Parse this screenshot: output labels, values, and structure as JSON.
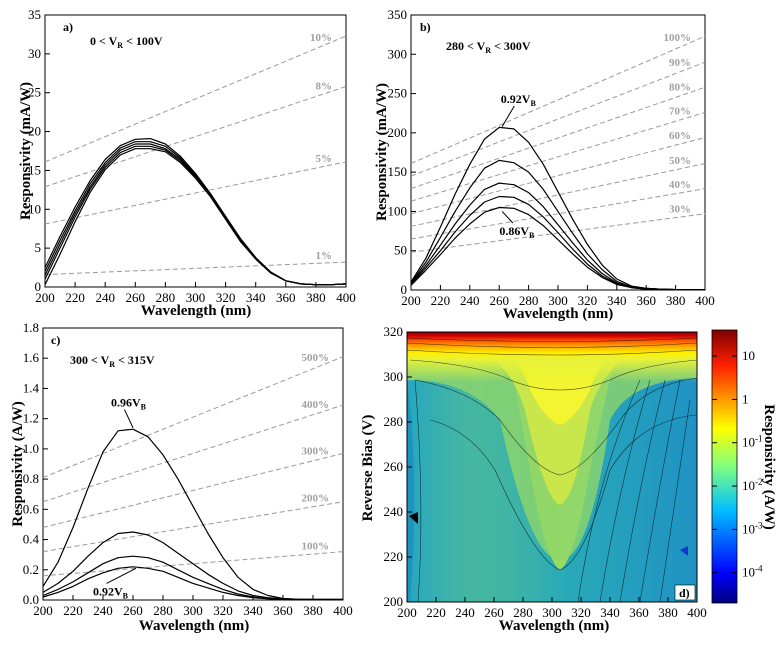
{
  "chart_data": [
    {
      "type": "line",
      "panel_label": "a)",
      "condition": {
        "pre": "0 < V",
        "sub": "R",
        "post": " < 100V"
      },
      "xlabel": "Wavelength (nm)",
      "ylabel": "Responsivity (mA/W)",
      "xlim": [
        200,
        400
      ],
      "ylim": [
        0,
        35
      ],
      "xticks": [
        200,
        220,
        240,
        260,
        280,
        300,
        320,
        340,
        360,
        380,
        400
      ],
      "yticks": [
        0,
        5,
        10,
        15,
        20,
        25,
        30,
        35
      ],
      "x": [
        200,
        210,
        220,
        230,
        240,
        250,
        260,
        270,
        280,
        290,
        300,
        310,
        320,
        330,
        340,
        350,
        360,
        370,
        380,
        390,
        400
      ],
      "series": [
        {
          "values": [
            2.5,
            6.5,
            10.3,
            13.7,
            16.4,
            18.2,
            19.0,
            19.1,
            18.4,
            16.8,
            14.6,
            12.0,
            9.1,
            6.2,
            3.8,
            1.9,
            0.8,
            0.4,
            0.3,
            0.3,
            0.4
          ]
        },
        {
          "values": [
            2.0,
            6.0,
            9.8,
            13.3,
            16.0,
            17.9,
            18.7,
            18.7,
            18.1,
            16.6,
            14.4,
            11.9,
            9.0,
            6.1,
            3.7,
            1.9,
            0.8,
            0.4,
            0.3,
            0.3,
            0.4
          ]
        },
        {
          "values": [
            1.5,
            5.5,
            9.4,
            12.9,
            15.7,
            17.6,
            18.4,
            18.4,
            17.8,
            16.4,
            14.3,
            11.8,
            8.9,
            6.0,
            3.7,
            1.9,
            0.8,
            0.4,
            0.3,
            0.3,
            0.4
          ]
        },
        {
          "values": [
            1.0,
            5.0,
            9.0,
            12.6,
            15.4,
            17.3,
            18.1,
            18.1,
            17.6,
            16.2,
            14.2,
            11.7,
            8.8,
            5.9,
            3.6,
            1.8,
            0.8,
            0.4,
            0.3,
            0.3,
            0.4
          ]
        },
        {
          "values": [
            0.3,
            4.2,
            8.4,
            12.2,
            15.1,
            17.0,
            17.8,
            17.8,
            17.4,
            16.0,
            14.0,
            11.6,
            8.7,
            5.8,
            3.6,
            1.8,
            0.8,
            0.4,
            0.3,
            0.3,
            0.4
          ]
        }
      ],
      "qe_lines": [
        {
          "label": "1%",
          "values": [
            1.6,
            3.2
          ]
        },
        {
          "label": "5%",
          "values": [
            8.1,
            16.1
          ]
        },
        {
          "label": "8%",
          "values": [
            12.9,
            25.8
          ]
        },
        {
          "label": "10%",
          "values": [
            16.1,
            32.3
          ]
        }
      ],
      "annotations": []
    },
    {
      "type": "line",
      "panel_label": "b)",
      "condition": {
        "pre": "280 < V",
        "sub": "R",
        "post": " < 300V"
      },
      "xlabel": "Wavelength (nm)",
      "ylabel": "Responsivity (mA/W)",
      "xlim": [
        200,
        400
      ],
      "ylim": [
        0,
        350
      ],
      "xticks": [
        200,
        220,
        240,
        260,
        280,
        300,
        320,
        340,
        360,
        380,
        400
      ],
      "yticks": [
        0,
        50,
        100,
        150,
        200,
        250,
        300,
        350
      ],
      "x": [
        200,
        210,
        220,
        230,
        240,
        250,
        260,
        270,
        280,
        290,
        300,
        310,
        320,
        330,
        340,
        350,
        360,
        370,
        380,
        390,
        400
      ],
      "series": [
        {
          "values": [
            10,
            40,
            80,
            122,
            160,
            192,
            207,
            205,
            188,
            160,
            125,
            90,
            58,
            32,
            14,
            5,
            2,
            1,
            0.5,
            0.5,
            0.5
          ]
        },
        {
          "values": [
            9,
            35,
            67,
            100,
            130,
            155,
            165,
            162,
            150,
            128,
            100,
            72,
            46,
            26,
            11,
            4,
            2,
            1,
            0.5,
            0.5,
            0.5
          ]
        },
        {
          "values": [
            8,
            31,
            57,
            84,
            108,
            128,
            136,
            134,
            124,
            106,
            83,
            60,
            38,
            21,
            9,
            3,
            2,
            1,
            0.5,
            0.5,
            0.5
          ]
        },
        {
          "values": [
            7,
            28,
            50,
            74,
            95,
            112,
            119,
            118,
            109,
            93,
            73,
            52,
            33,
            18,
            8,
            3,
            1,
            1,
            0.5,
            0.5,
            0.5
          ]
        },
        {
          "values": [
            6,
            25,
            45,
            66,
            84,
            99,
            105,
            104,
            96,
            82,
            64,
            46,
            29,
            16,
            7,
            3,
            1,
            1,
            0.5,
            0.5,
            0.5
          ]
        }
      ],
      "qe_lines": [
        {
          "label": "30%",
          "values": [
            48,
            97
          ]
        },
        {
          "label": "40%",
          "values": [
            65,
            129
          ]
        },
        {
          "label": "50%",
          "values": [
            81,
            161
          ]
        },
        {
          "label": "60%",
          "values": [
            97,
            194
          ]
        },
        {
          "label": "70%",
          "values": [
            113,
            226
          ]
        },
        {
          "label": "80%",
          "values": [
            129,
            258
          ]
        },
        {
          "label": "90%",
          "values": [
            145,
            290
          ]
        },
        {
          "label": "100%",
          "values": [
            161,
            323
          ]
        }
      ],
      "annotations": [
        {
          "pre": "0.92V",
          "sub": "B",
          "x": 273,
          "y": 238,
          "ax": 262,
          "ay": 208
        },
        {
          "pre": "0.86V",
          "sub": "B",
          "x": 272,
          "y": 70,
          "ax": 262,
          "ay": 100
        }
      ]
    },
    {
      "type": "line",
      "panel_label": "c)",
      "condition": {
        "pre": "300 < V",
        "sub": "R",
        "post": " < 315V"
      },
      "xlabel": "Wavelength (nm)",
      "ylabel": "Responsivity (A/W)",
      "xlim": [
        200,
        400
      ],
      "ylim": [
        0,
        1.8
      ],
      "xticks": [
        200,
        220,
        240,
        260,
        280,
        300,
        320,
        340,
        360,
        380,
        400
      ],
      "yticks": [
        0,
        0.2,
        0.4,
        0.6,
        0.8,
        1.0,
        1.2,
        1.4,
        1.6,
        1.8
      ],
      "x": [
        200,
        210,
        220,
        230,
        240,
        250,
        260,
        270,
        280,
        290,
        300,
        310,
        320,
        330,
        340,
        350,
        360,
        370,
        380,
        390,
        400
      ],
      "series": [
        {
          "values": [
            0.09,
            0.25,
            0.48,
            0.74,
            0.98,
            1.12,
            1.13,
            1.08,
            0.96,
            0.8,
            0.62,
            0.44,
            0.28,
            0.15,
            0.07,
            0.03,
            0.01,
            0.005,
            0.003,
            0.003,
            0.003
          ]
        },
        {
          "values": [
            0.05,
            0.11,
            0.19,
            0.29,
            0.38,
            0.44,
            0.45,
            0.43,
            0.38,
            0.31,
            0.24,
            0.17,
            0.11,
            0.06,
            0.03,
            0.015,
            0.007,
            0.004,
            0.003,
            0.003,
            0.003
          ]
        },
        {
          "values": [
            0.03,
            0.07,
            0.12,
            0.18,
            0.24,
            0.28,
            0.29,
            0.28,
            0.25,
            0.2,
            0.15,
            0.11,
            0.07,
            0.04,
            0.02,
            0.01,
            0.005,
            0.003,
            0.003,
            0.003,
            0.003
          ]
        },
        {
          "values": [
            0.02,
            0.05,
            0.09,
            0.14,
            0.18,
            0.21,
            0.22,
            0.21,
            0.19,
            0.15,
            0.11,
            0.08,
            0.05,
            0.03,
            0.015,
            0.008,
            0.004,
            0.003,
            0.003,
            0.003,
            0.003
          ]
        }
      ],
      "qe_lines": [
        {
          "label": "100%",
          "values": [
            0.16,
            0.32
          ]
        },
        {
          "label": "200%",
          "values": [
            0.32,
            0.65
          ]
        },
        {
          "label": "300%",
          "values": [
            0.48,
            0.97
          ]
        },
        {
          "label": "400%",
          "values": [
            0.65,
            1.29
          ]
        },
        {
          "label": "500%",
          "values": [
            0.81,
            1.61
          ]
        }
      ],
      "annotations": [
        {
          "pre": "0.96V",
          "sub": "B",
          "x": 257,
          "y": 1.28,
          "ax": 260,
          "ay": 1.14
        },
        {
          "pre": "0.92V",
          "sub": "B",
          "x": 245,
          "y": 0.03,
          "ax": 262,
          "ay": 0.21
        }
      ]
    },
    {
      "type": "heatmap",
      "panel_label": "d)",
      "xlabel": "Wavelength (nm)",
      "ylabel": "Reverse Bias (V)",
      "colorbar_label": "Responsivity (A/W)",
      "xlim": [
        200,
        400
      ],
      "ylim": [
        200,
        320
      ],
      "xticks": [
        200,
        220,
        240,
        260,
        280,
        300,
        320,
        340,
        360,
        380,
        400
      ],
      "yticks": [
        200,
        220,
        240,
        260,
        280,
        300,
        320
      ],
      "colorbar_scale": "log",
      "colorbar_range": [
        2e-05,
        40
      ],
      "colorbar_ticks": [
        {
          "value": 10,
          "base": "10",
          "exp": ""
        },
        {
          "value": 1,
          "base": "1",
          "exp": ""
        },
        {
          "value": 0.1,
          "base": "10",
          "exp": "-1"
        },
        {
          "value": 0.01,
          "base": "10",
          "exp": "-2"
        },
        {
          "value": 0.001,
          "base": "10",
          "exp": "-3"
        },
        {
          "value": 0.0001,
          "base": "10",
          "exp": "-4"
        }
      ]
    }
  ]
}
